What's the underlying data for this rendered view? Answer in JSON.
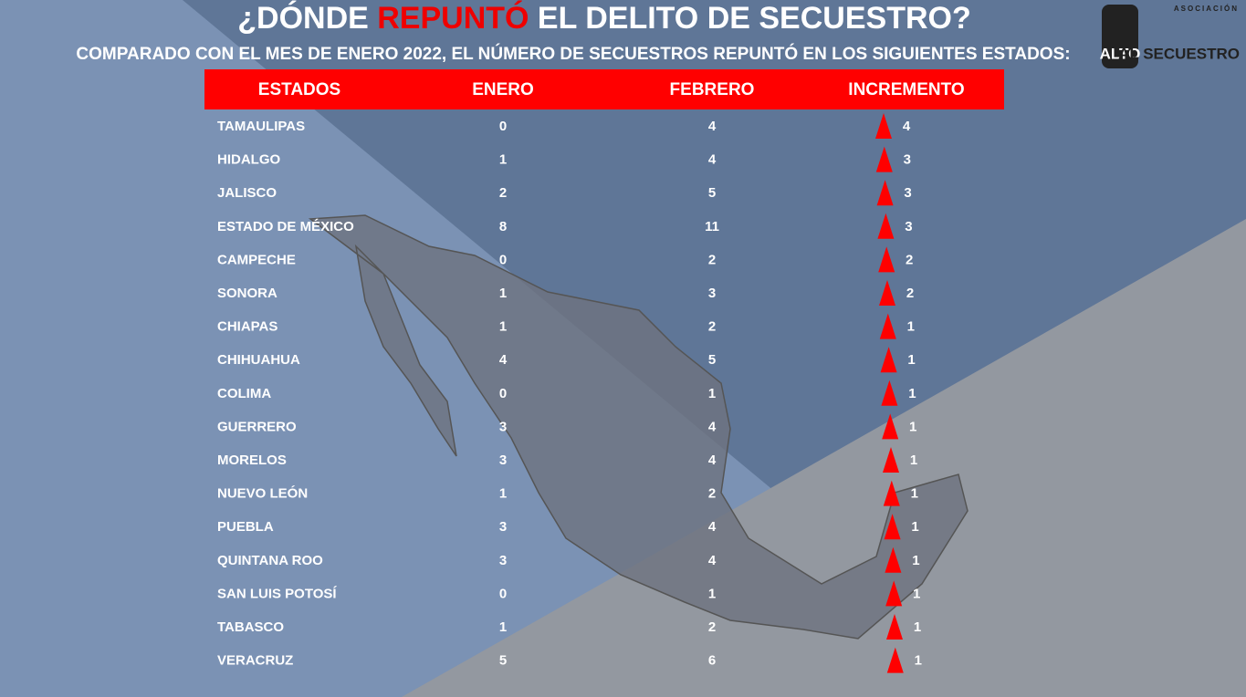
{
  "header": {
    "title_parts": [
      "¿DÓNDE ",
      "REPUNTÓ",
      " EL DELITO DE SECUESTRO?"
    ],
    "subtitle": "COMPARADO CON EL MES DE ENERO 2022, EL NÚMERO DE SECUESTROS REPUNTÓ EN LOS SIGUIENTES  ESTADOS:"
  },
  "logo": {
    "top": "ASOCIACIÓN",
    "left": "ALTO",
    "right": "AL SECUESTRO"
  },
  "table": {
    "columns": [
      "ESTADOS",
      "ENERO",
      "FEBRERO",
      "INCREMENTO"
    ],
    "rows": [
      [
        "TAMAULIPAS",
        0,
        4,
        4
      ],
      [
        "HIDALGO",
        1,
        4,
        3
      ],
      [
        "JALISCO",
        2,
        5,
        3
      ],
      [
        "ESTADO DE MÉXICO",
        8,
        11,
        3
      ],
      [
        "CAMPECHE",
        0,
        2,
        2
      ],
      [
        "SONORA",
        1,
        3,
        2
      ],
      [
        "CHIAPAS",
        1,
        2,
        1
      ],
      [
        "CHIHUAHUA",
        4,
        5,
        1
      ],
      [
        "COLIMA",
        0,
        1,
        1
      ],
      [
        "GUERRERO",
        3,
        4,
        1
      ],
      [
        "MORELOS",
        3,
        4,
        1
      ],
      [
        "NUEVO LEÓN",
        1,
        2,
        1
      ],
      [
        "PUEBLA",
        3,
        4,
        1
      ],
      [
        "QUINTANA ROO",
        3,
        4,
        1
      ],
      [
        "SAN LUIS POTOSÍ",
        0,
        1,
        1
      ],
      [
        "TABASCO",
        1,
        2,
        1
      ],
      [
        "VERACRUZ",
        5,
        6,
        1
      ]
    ]
  }
}
